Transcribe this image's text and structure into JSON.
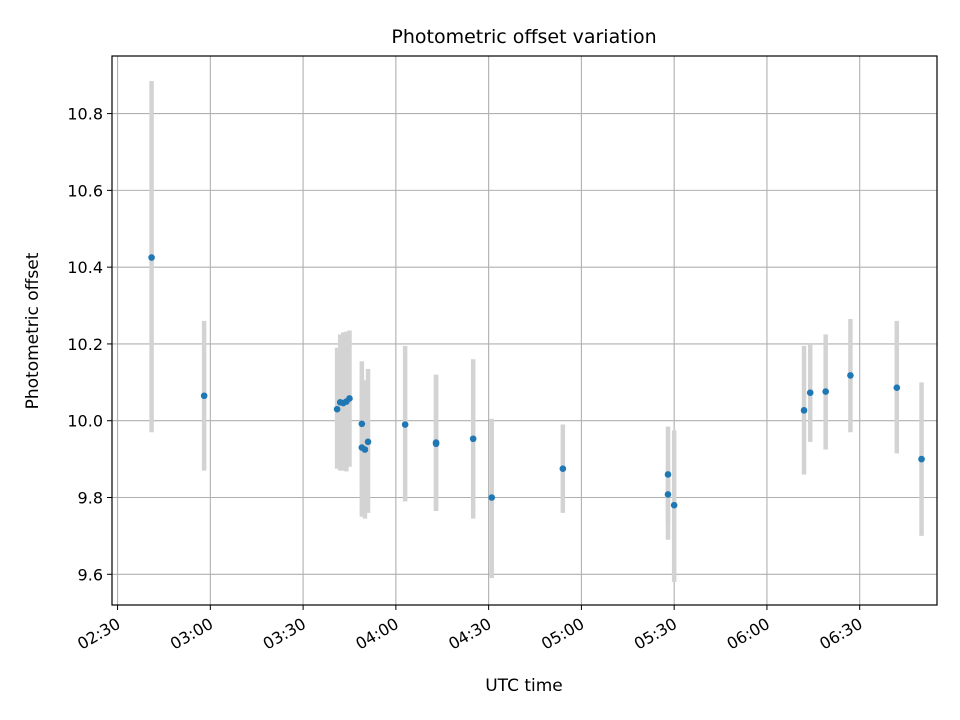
{
  "chart_data": {
    "type": "scatter",
    "title": "Photometric offset variation",
    "xlabel": "UTC time",
    "ylabel": "Photometric offset",
    "x_unit": "UTC time (HH:MM)",
    "xlim": [
      "02:28",
      "06:42"
    ],
    "ylim": [
      9.52,
      10.95
    ],
    "x_ticks": [
      "02:30",
      "03:00",
      "03:30",
      "04:00",
      "04:30",
      "05:00",
      "05:30",
      "06:00",
      "06:30"
    ],
    "y_ticks": [
      9.6,
      9.8,
      10.0,
      10.2,
      10.4,
      10.6,
      10.8
    ],
    "grid": true,
    "colors": {
      "point": "#1f77b4",
      "errorbar": "#d3d3d3",
      "grid": "#b0b0b0"
    },
    "series": [
      {
        "points": [
          {
            "x": "02:41",
            "y": 10.425,
            "ylow": 9.97,
            "yhigh": 10.885
          },
          {
            "x": "02:58",
            "y": 10.065,
            "ylow": 9.87,
            "yhigh": 10.26
          },
          {
            "x": "03:41",
            "y": 10.03,
            "ylow": 9.875,
            "yhigh": 10.19
          },
          {
            "x": "03:42",
            "y": 10.048,
            "ylow": 9.87,
            "yhigh": 10.225
          },
          {
            "x": "03:43",
            "y": 10.046,
            "ylow": 9.87,
            "yhigh": 10.23
          },
          {
            "x": "03:44",
            "y": 10.05,
            "ylow": 9.868,
            "yhigh": 10.232
          },
          {
            "x": "03:45",
            "y": 10.058,
            "ylow": 9.88,
            "yhigh": 10.235
          },
          {
            "x": "03:49",
            "y": 9.992,
            "ylow": 9.83,
            "yhigh": 10.155
          },
          {
            "x": "03:49",
            "y": 9.93,
            "ylow": 9.75,
            "yhigh": 10.11
          },
          {
            "x": "03:50",
            "y": 9.925,
            "ylow": 9.745,
            "yhigh": 10.105
          },
          {
            "x": "03:51",
            "y": 9.945,
            "ylow": 9.76,
            "yhigh": 10.135
          },
          {
            "x": "04:03",
            "y": 9.99,
            "ylow": 9.79,
            "yhigh": 10.195
          },
          {
            "x": "04:13",
            "y": 9.943,
            "ylow": 9.765,
            "yhigh": 10.12
          },
          {
            "x": "04:13",
            "y": 9.94,
            "ylow": 9.765,
            "yhigh": 10.118
          },
          {
            "x": "04:25",
            "y": 9.953,
            "ylow": 9.745,
            "yhigh": 10.16
          },
          {
            "x": "04:31",
            "y": 9.8,
            "ylow": 9.59,
            "yhigh": 10.005
          },
          {
            "x": "04:54",
            "y": 9.875,
            "ylow": 9.76,
            "yhigh": 9.99
          },
          {
            "x": "05:28",
            "y": 9.86,
            "ylow": 9.69,
            "yhigh": 9.985
          },
          {
            "x": "05:28",
            "y": 9.808,
            "ylow": 9.73,
            "yhigh": 9.885
          },
          {
            "x": "05:30",
            "y": 9.78,
            "ylow": 9.58,
            "yhigh": 9.975
          },
          {
            "x": "06:12",
            "y": 10.027,
            "ylow": 9.86,
            "yhigh": 10.195
          },
          {
            "x": "06:14",
            "y": 10.073,
            "ylow": 9.945,
            "yhigh": 10.2
          },
          {
            "x": "06:19",
            "y": 10.076,
            "ylow": 9.925,
            "yhigh": 10.225
          },
          {
            "x": "06:27",
            "y": 10.118,
            "ylow": 9.97,
            "yhigh": 10.265
          },
          {
            "x": "06:42",
            "y": 10.086,
            "ylow": 9.915,
            "yhigh": 10.26
          },
          {
            "x": "06:50",
            "y": 9.9,
            "ylow": 9.7,
            "yhigh": 10.1
          }
        ]
      }
    ]
  }
}
